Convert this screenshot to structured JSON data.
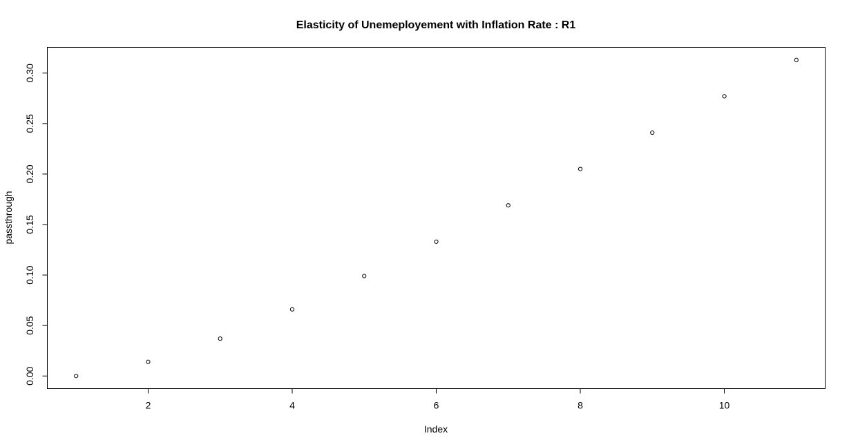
{
  "chart_data": {
    "type": "scatter",
    "title": "Elasticity of Unemeployement with Inflation Rate : R1",
    "xlabel": "Index",
    "ylabel": "passthrough",
    "x": [
      1,
      2,
      3,
      4,
      5,
      6,
      7,
      8,
      9,
      10,
      11
    ],
    "y": [
      0.0,
      0.014,
      0.037,
      0.066,
      0.099,
      0.133,
      0.169,
      0.205,
      0.241,
      0.277,
      0.313
    ],
    "xlim": [
      0.6,
      11.4
    ],
    "ylim": [
      -0.0125,
      0.3255
    ],
    "x_ticks": [
      2,
      4,
      6,
      8,
      10
    ],
    "x_tick_labels": [
      "2",
      "4",
      "6",
      "8",
      "10"
    ],
    "y_ticks": [
      0.0,
      0.05,
      0.1,
      0.15,
      0.2,
      0.25,
      0.3
    ],
    "y_tick_labels": [
      "0.00",
      "0.05",
      "0.10",
      "0.15",
      "0.20",
      "0.25",
      "0.30"
    ],
    "marker": "open-circle",
    "grid": false,
    "legend": "none",
    "colors": {
      "background": "#ffffff",
      "foreground": "#000000"
    }
  }
}
